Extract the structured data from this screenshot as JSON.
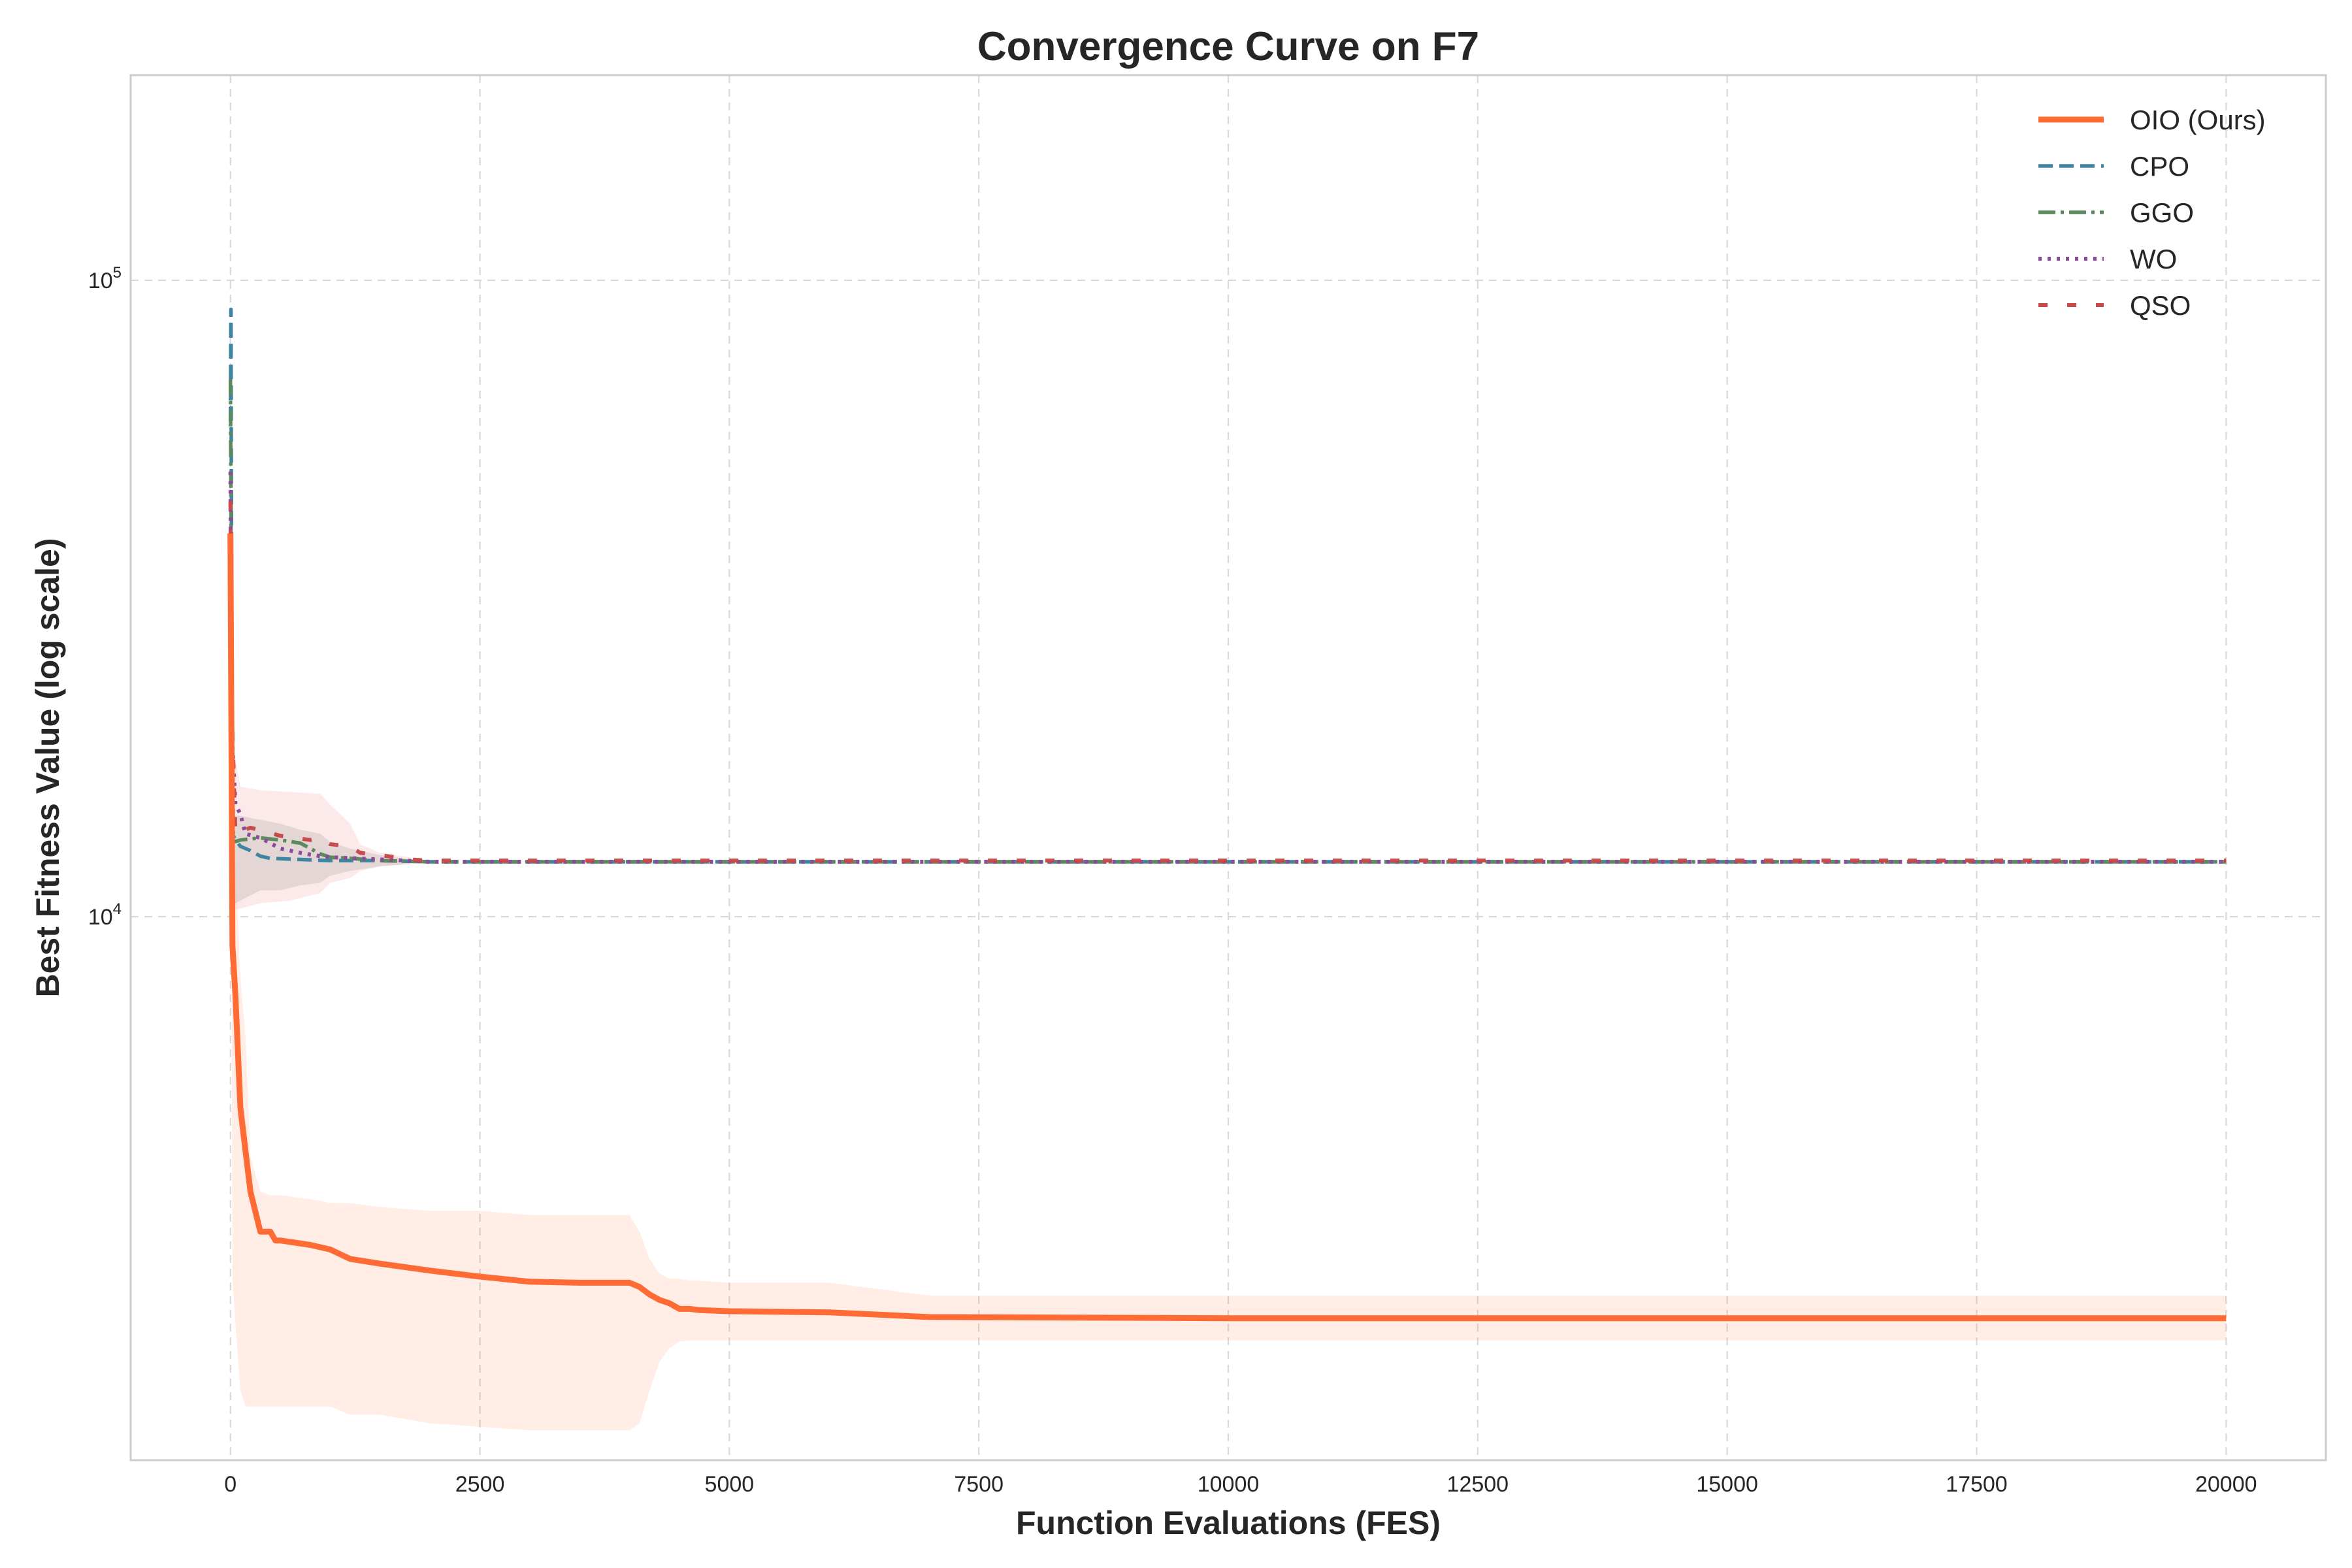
{
  "chart_data": {
    "type": "line",
    "title": "Convergence Curve on F7",
    "xlabel": "Function Evaluations (FES)",
    "ylabel": "Best Fitness Value (log scale)",
    "xlim": [
      -1000,
      21000
    ],
    "ylim": [
      1400,
      210000
    ],
    "yscale": "log",
    "grid": true,
    "legend_position": "top-right",
    "x_ticks": [
      0,
      2500,
      5000,
      7500,
      10000,
      12500,
      15000,
      17500,
      20000
    ],
    "x_tick_labels": [
      "0",
      "2500",
      "5000",
      "7500",
      "10000",
      "12500",
      "15000",
      "17500",
      "20000"
    ],
    "y_ticks": [
      {
        "value": 100000,
        "base": "10",
        "exp": "5"
      },
      {
        "value": 10000,
        "base": "10",
        "exp": "4"
      }
    ],
    "series": [
      {
        "name": "OIO (Ours)",
        "color": "#ff6b35",
        "style": "solid",
        "x": [
          0,
          20,
          50,
          100,
          150,
          200,
          300,
          400,
          450,
          500,
          800,
          1000,
          1200,
          1500,
          2000,
          2500,
          3000,
          3500,
          4000,
          4100,
          4200,
          4300,
          4400,
          4500,
          4600,
          4700,
          5000,
          6000,
          6500,
          7000,
          8500,
          10000,
          20000
        ],
        "y": [
          40000,
          9000,
          7500,
          5000,
          4300,
          3700,
          3200,
          3200,
          3100,
          3100,
          3050,
          3000,
          2900,
          2850,
          2780,
          2720,
          2670,
          2660,
          2660,
          2620,
          2550,
          2500,
          2470,
          2420,
          2420,
          2410,
          2400,
          2390,
          2370,
          2350,
          2345,
          2340,
          2340
        ],
        "band_lower": [
          40000,
          2700,
          2300,
          1800,
          1700,
          1700,
          1700,
          1700,
          1700,
          1700,
          1700,
          1700,
          1650,
          1650,
          1600,
          1580,
          1560,
          1560,
          1560,
          1600,
          1800,
          2000,
          2100,
          2150,
          2160,
          2160,
          2160,
          2160,
          2160,
          2160,
          2160,
          2160,
          2160
        ],
        "band_upper": [
          40000,
          14000,
          12000,
          8000,
          6500,
          4200,
          3700,
          3650,
          3650,
          3650,
          3600,
          3550,
          3550,
          3500,
          3450,
          3450,
          3400,
          3400,
          3400,
          3200,
          2900,
          2750,
          2700,
          2700,
          2680,
          2680,
          2660,
          2660,
          2600,
          2540,
          2540,
          2540,
          2540
        ]
      },
      {
        "name": "CPO",
        "color": "#3d85a0",
        "style": "dashed",
        "x": [
          0,
          5,
          10,
          20,
          50,
          100,
          200,
          300,
          400,
          700,
          1000,
          1500,
          2000,
          20000
        ],
        "y": [
          60000,
          90000,
          40000,
          13500,
          13200,
          12900,
          12700,
          12450,
          12350,
          12300,
          12250,
          12250,
          12200,
          12200
        ]
      },
      {
        "name": "GGO",
        "color": "#5c8a5e",
        "style": "dashdot",
        "x": [
          0,
          10,
          30,
          100,
          300,
          500,
          700,
          800,
          900,
          1000,
          1200,
          1500,
          2000,
          20000
        ],
        "y": [
          70000,
          30000,
          13100,
          13200,
          13300,
          13200,
          13050,
          12800,
          12550,
          12400,
          12350,
          12250,
          12200,
          12200
        ]
      },
      {
        "name": "WO",
        "color": "#8b4a9c",
        "style": "dotted",
        "x": [
          0,
          10,
          50,
          100,
          150,
          300,
          500,
          700,
          900,
          1000,
          1500,
          2000,
          20000
        ],
        "y": [
          50000,
          20000,
          15000,
          14500,
          13500,
          13300,
          12800,
          12600,
          12450,
          12400,
          12300,
          12200,
          12200
        ]
      },
      {
        "name": "QSO",
        "color": "#c94a4a",
        "style": "sparse-dashed",
        "x": [
          0,
          10,
          50,
          200,
          500,
          800,
          900,
          1000,
          1200,
          1300,
          1500,
          1800,
          2000,
          20000
        ],
        "y": [
          45000,
          22000,
          13500,
          13800,
          13400,
          13200,
          13300,
          13000,
          12900,
          12600,
          12500,
          12300,
          12250,
          12250
        ]
      }
    ],
    "gray_band": {
      "color": "#808080",
      "x": [
        0,
        100,
        300,
        500,
        700,
        900,
        1000,
        1200,
        1500,
        1800
      ],
      "lower": [
        10400,
        10600,
        11000,
        11000,
        11200,
        11300,
        11600,
        11800,
        12000,
        12100
      ],
      "upper": [
        14400,
        14400,
        14200,
        14000,
        13700,
        13500,
        13100,
        12800,
        12500,
        12300
      ]
    },
    "pink_band": {
      "color": "#f5c4c4",
      "x": [
        0,
        100,
        300,
        600,
        900,
        1000,
        1200,
        1300,
        1500,
        1800
      ],
      "lower": [
        10200,
        10300,
        10500,
        10600,
        10900,
        11300,
        11500,
        11800,
        12000,
        12100
      ],
      "upper": [
        19500,
        16000,
        15800,
        15700,
        15600,
        15000,
        14000,
        13000,
        12600,
        12400
      ]
    }
  }
}
